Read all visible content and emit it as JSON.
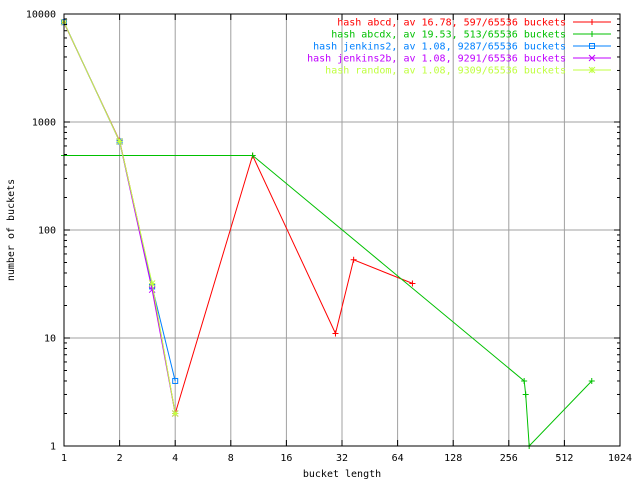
{
  "chart_data": {
    "type": "line",
    "xlabel": "bucket length",
    "ylabel": "number of buckets",
    "x_scale": "log2",
    "y_scale": "log10",
    "xlim": [
      1,
      1024
    ],
    "ylim": [
      1,
      10000
    ],
    "grid": true,
    "legend_position": "top-right",
    "x_ticks": [
      "1",
      "2",
      "4",
      "8",
      "16",
      "32",
      "64",
      "128",
      "256",
      "512",
      "1024"
    ],
    "y_ticks": [
      "1",
      "10",
      "100",
      "1000",
      "10000"
    ],
    "series": [
      {
        "name": "hash abcd, av 16.78, 597/65536 buckets",
        "color": "#ff0000",
        "marker": "plus",
        "points": [
          [
            1,
            8300
          ],
          [
            2,
            670
          ],
          [
            3,
            31
          ],
          [
            4,
            2
          ],
          [
            10.5,
            490
          ],
          [
            29.5,
            11
          ],
          [
            37,
            53
          ],
          [
            77,
            32
          ]
        ]
      },
      {
        "name": "hash abcdx, av 19.53, 513/65536 buckets",
        "color": "#00c000",
        "marker": "plus",
        "points": [
          [
            1,
            490
          ],
          [
            10.5,
            490
          ],
          [
            310,
            4
          ],
          [
            316,
            3
          ],
          [
            330,
            1
          ],
          [
            720,
            4
          ]
        ]
      },
      {
        "name": "hash jenkins2, av 1.08, 9287/65536 buckets",
        "color": "#0080ff",
        "marker": "square",
        "points": [
          [
            1,
            8400
          ],
          [
            2,
            660
          ],
          [
            3,
            30
          ],
          [
            4,
            4
          ]
        ]
      },
      {
        "name": "hash jenkins2b, av 1.08, 9291/65536 buckets",
        "color": "#c000ff",
        "marker": "x",
        "points": [
          [
            1,
            8400
          ],
          [
            2,
            660
          ],
          [
            3,
            28
          ],
          [
            4,
            2
          ]
        ]
      },
      {
        "name": "hash random, av 1.08, 9309/65536 buckets",
        "color": "#c0ff40",
        "marker": "star",
        "points": [
          [
            1,
            8400
          ],
          [
            2,
            660
          ],
          [
            3,
            32
          ],
          [
            4,
            2
          ]
        ]
      }
    ]
  }
}
